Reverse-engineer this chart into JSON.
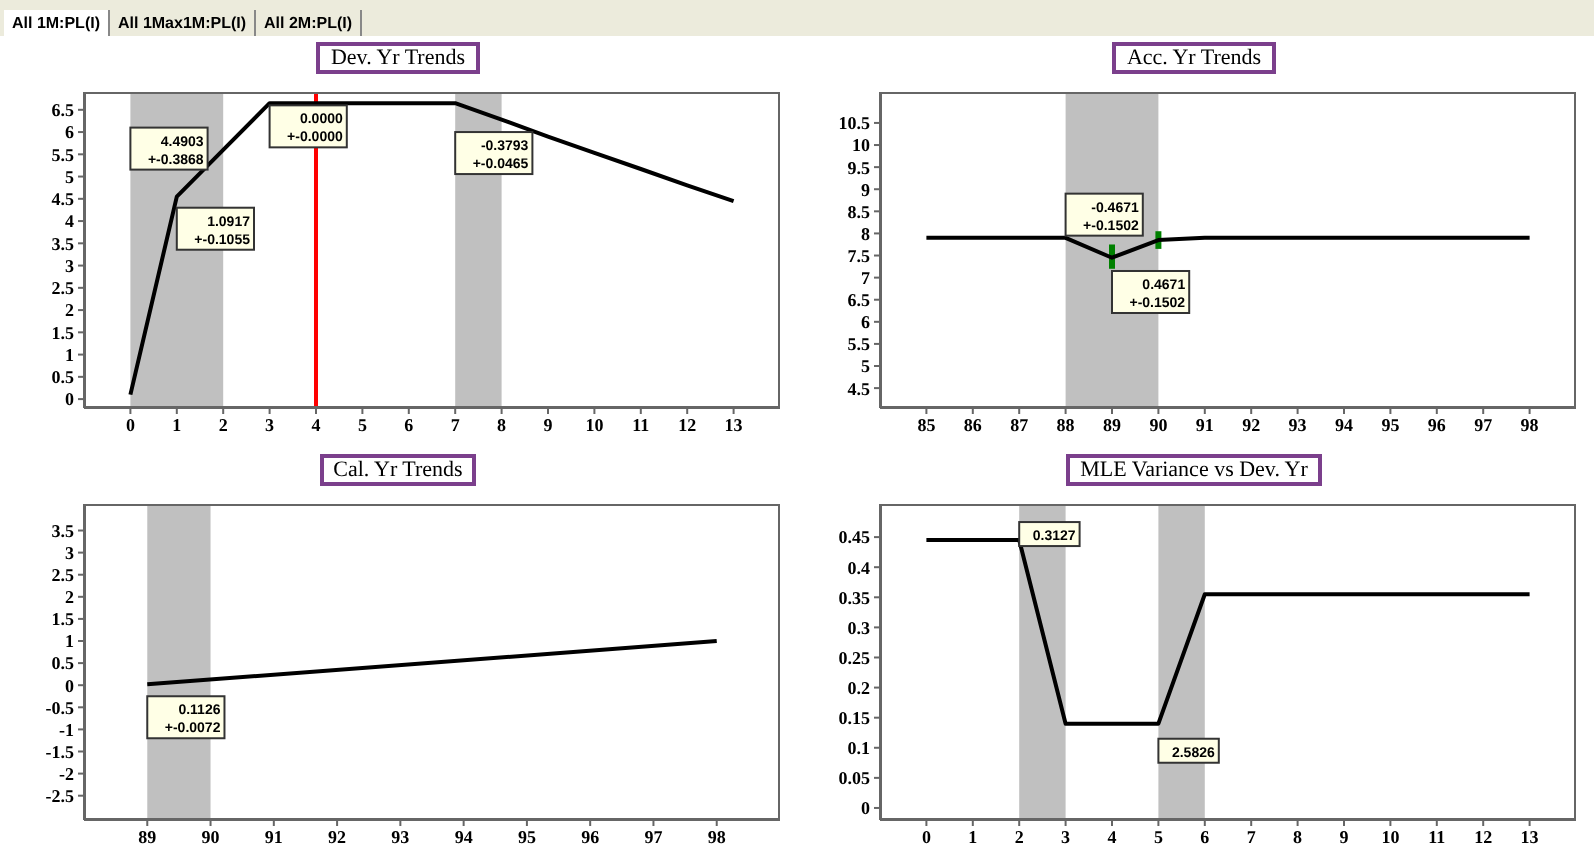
{
  "chart_data": [
    {
      "type": "line",
      "title": "Dev. Yr Trends",
      "color": "#000000",
      "x": [
        0,
        1,
        2,
        3,
        4,
        5,
        6,
        7,
        8,
        9,
        10,
        11,
        12,
        13
      ],
      "values": [
        0.1,
        4.55,
        5.6,
        6.65,
        6.65,
        6.65,
        6.65,
        6.65,
        6.28,
        5.9,
        5.53,
        5.17,
        4.8,
        4.45
      ],
      "xlim": [
        -1,
        14
      ],
      "xticks": [
        0,
        1,
        2,
        3,
        4,
        5,
        6,
        7,
        8,
        9,
        10,
        11,
        12,
        13
      ],
      "ylim": [
        -0.2,
        6.9
      ],
      "yticks": [
        0,
        0.5,
        1,
        1.5,
        2,
        2.5,
        3,
        3.5,
        4,
        4.5,
        5,
        5.5,
        6,
        6.5
      ],
      "bands": [
        {
          "axis": "x",
          "from": 0,
          "to": 2,
          "color": "#c0c0c0"
        },
        {
          "axis": "x",
          "from": 7,
          "to": 8,
          "color": "#c0c0c0"
        }
      ],
      "ref_lines": [
        {
          "axis": "x",
          "value": 4,
          "color": "#ff0000"
        }
      ],
      "annotations": [
        "All 1M:PL(I)",
        "All 1Max1M:PL(I)",
        "All 2M:PL(I)",
        {
          "text": "4.4903\n+-0.3868",
          "x": 0,
          "y": 6.1
        },
        {
          "text": "1.0917\n+-0.1055",
          "x": 1,
          "y": 4.3
        },
        {
          "text": "0.0000\n+-0.0000",
          "x": 3,
          "y": 6.6
        },
        {
          "text": "-0.3793\n+-0.0465",
          "x": 7,
          "y": 6.0
        }
      ]
    },
    {
      "type": "line",
      "title": "Acc. Yr Trends",
      "color": "#000000",
      "x": [
        85,
        86,
        87,
        88,
        89,
        90,
        91,
        92,
        93,
        94,
        95,
        96,
        97,
        98
      ],
      "values": [
        7.9,
        7.9,
        7.9,
        7.9,
        7.45,
        7.85,
        7.9,
        7.9,
        7.9,
        7.9,
        7.9,
        7.9,
        7.9,
        7.9
      ],
      "errors": [
        null,
        null,
        null,
        null,
        [
          7.2,
          7.75
        ],
        [
          7.65,
          8.05
        ],
        null,
        null,
        null,
        null,
        null,
        null,
        null,
        null
      ],
      "xlim": [
        84,
        99
      ],
      "xticks": [
        85,
        86,
        87,
        88,
        89,
        90,
        91,
        92,
        93,
        94,
        95,
        96,
        97,
        98
      ],
      "ylim": [
        4.05,
        11.2
      ],
      "yticks": [
        4.5,
        5,
        5.5,
        6,
        6.5,
        7,
        7.5,
        8,
        8.5,
        9,
        9.5,
        10,
        10.5
      ],
      "bands": [
        {
          "axis": "x",
          "from": 88,
          "to": 90,
          "color": "#c0c0c0"
        }
      ],
      "annotations": [
        {
          "text": "-0.4671\n+-0.1502",
          "x": 88,
          "y": 8.9
        },
        {
          "text": "0.4671\n+-0.1502",
          "x": 89,
          "y": 7.15
        }
      ]
    },
    {
      "type": "line",
      "title": "Cal. Yr Trends",
      "color": "#000000",
      "x": [
        89,
        98
      ],
      "values": [
        0.02,
        1.0
      ],
      "xlim": [
        88,
        99
      ],
      "xticks": [
        89,
        90,
        91,
        92,
        93,
        94,
        95,
        96,
        97,
        98
      ],
      "ylim": [
        -3.05,
        4.1
      ],
      "yticks": [
        -2.5,
        -2,
        -1.5,
        -1,
        -0.5,
        0,
        0.5,
        1,
        1.5,
        2,
        2.5,
        3,
        3.5
      ],
      "bands": [
        {
          "axis": "x",
          "from": 89,
          "to": 90,
          "color": "#c0c0c0"
        }
      ],
      "annotations": [
        {
          "text": "0.1126\n+-0.0072",
          "x": 89,
          "y": -0.25
        }
      ]
    },
    {
      "type": "line",
      "title": "MLE Variance vs Dev. Yr",
      "color": "#000000",
      "x": [
        0,
        1,
        2,
        3,
        4,
        5,
        6,
        7,
        8,
        9,
        10,
        11,
        12,
        13
      ],
      "values": [
        0.445,
        0.445,
        0.445,
        0.14,
        0.14,
        0.14,
        0.355,
        0.355,
        0.355,
        0.355,
        0.355,
        0.355,
        0.355,
        0.355
      ],
      "xlim": [
        -1,
        14
      ],
      "xticks": [
        0,
        1,
        2,
        3,
        4,
        5,
        6,
        7,
        8,
        9,
        10,
        11,
        12,
        13
      ],
      "ylim": [
        -0.02,
        0.505
      ],
      "yticks": [
        0,
        0.05,
        0.1,
        0.15,
        0.2,
        0.25,
        0.3,
        0.35,
        0.4,
        0.45
      ],
      "bands": [
        {
          "axis": "x",
          "from": 2,
          "to": 3,
          "color": "#c0c0c0"
        },
        {
          "axis": "x",
          "from": 5,
          "to": 6,
          "color": "#c0c0c0"
        }
      ],
      "annotations": [
        {
          "text": "0.3127",
          "x": 2,
          "y": 0.475
        },
        {
          "text": "2.5826",
          "x": 5,
          "y": 0.115
        }
      ]
    }
  ]
}
